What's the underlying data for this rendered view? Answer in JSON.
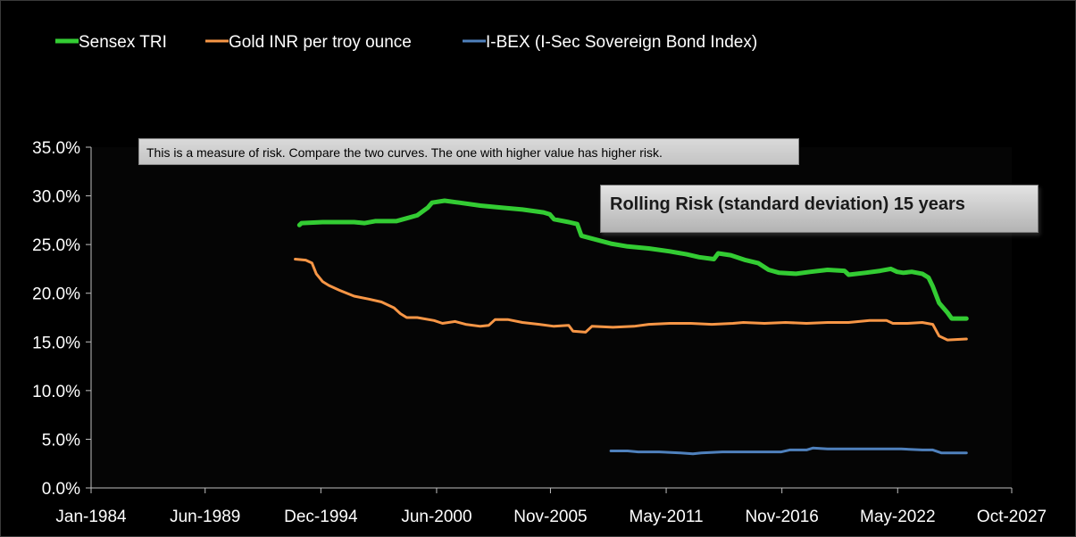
{
  "chart_data": {
    "type": "line",
    "title": "Rolling Risk (standard deviation) 15 years",
    "annotation": "This is a measure of risk.  Compare the two curves. The one with higher value has higher risk.",
    "xlabel": "",
    "ylabel": "",
    "x_ticks": [
      "Jan-1984",
      "Jun-1989",
      "Dec-1994",
      "Jun-2000",
      "Nov-2005",
      "May-2011",
      "Nov-2016",
      "May-2022",
      "Oct-2027"
    ],
    "x_tick_values": [
      1984.0,
      1989.42,
      1994.92,
      2000.42,
      2005.83,
      2011.33,
      2016.83,
      2022.33,
      2027.75
    ],
    "xlim": [
      1984.0,
      2027.75
    ],
    "y_ticks": [
      "0.0%",
      "5.0%",
      "10.0%",
      "15.0%",
      "20.0%",
      "25.0%",
      "30.0%",
      "35.0%"
    ],
    "ylim": [
      0,
      35
    ],
    "grid": false,
    "legend_position": "top-left",
    "series": [
      {
        "name": "Sensex TRI",
        "color": "#33cc33",
        "points": [
          [
            1993.9,
            27.0
          ],
          [
            1994.0,
            27.2
          ],
          [
            1995.0,
            27.3
          ],
          [
            1996.5,
            27.3
          ],
          [
            1997.0,
            27.2
          ],
          [
            1997.5,
            27.4
          ],
          [
            1998.5,
            27.4
          ],
          [
            1999.0,
            27.7
          ],
          [
            1999.5,
            28.0
          ],
          [
            2000.0,
            28.8
          ],
          [
            2000.2,
            29.3
          ],
          [
            2000.8,
            29.5
          ],
          [
            2001.5,
            29.3
          ],
          [
            2002.5,
            29.0
          ],
          [
            2003.5,
            28.8
          ],
          [
            2004.5,
            28.6
          ],
          [
            2005.5,
            28.3
          ],
          [
            2005.8,
            28.1
          ],
          [
            2006.0,
            27.6
          ],
          [
            2006.7,
            27.3
          ],
          [
            2007.1,
            27.1
          ],
          [
            2007.3,
            25.9
          ],
          [
            2008.0,
            25.5
          ],
          [
            2008.7,
            25.1
          ],
          [
            2009.5,
            24.8
          ],
          [
            2010.5,
            24.6
          ],
          [
            2011.5,
            24.3
          ],
          [
            2012.3,
            24.0
          ],
          [
            2012.9,
            23.7
          ],
          [
            2013.6,
            23.5
          ],
          [
            2013.8,
            24.1
          ],
          [
            2014.4,
            23.9
          ],
          [
            2015.1,
            23.4
          ],
          [
            2015.7,
            23.1
          ],
          [
            2016.2,
            22.4
          ],
          [
            2016.7,
            22.1
          ],
          [
            2017.5,
            22.0
          ],
          [
            2018.2,
            22.2
          ],
          [
            2019.0,
            22.4
          ],
          [
            2019.8,
            22.3
          ],
          [
            2020.0,
            21.9
          ],
          [
            2020.8,
            22.1
          ],
          [
            2021.5,
            22.3
          ],
          [
            2022.0,
            22.5
          ],
          [
            2022.3,
            22.2
          ],
          [
            2022.6,
            22.1
          ],
          [
            2023.0,
            22.2
          ],
          [
            2023.5,
            22.0
          ],
          [
            2023.8,
            21.6
          ],
          [
            2024.0,
            20.7
          ],
          [
            2024.3,
            19.0
          ],
          [
            2024.7,
            18.0
          ],
          [
            2024.9,
            17.4
          ],
          [
            2025.6,
            17.4
          ]
        ]
      },
      {
        "name": "Gold INR per troy ounce",
        "color": "#f79646",
        "points": [
          [
            1993.7,
            23.5
          ],
          [
            1994.2,
            23.4
          ],
          [
            1994.5,
            23.1
          ],
          [
            1994.7,
            22.0
          ],
          [
            1995.0,
            21.2
          ],
          [
            1995.3,
            20.8
          ],
          [
            1995.8,
            20.3
          ],
          [
            1996.5,
            19.7
          ],
          [
            1997.2,
            19.4
          ],
          [
            1997.8,
            19.1
          ],
          [
            1998.4,
            18.5
          ],
          [
            1998.7,
            17.9
          ],
          [
            1999.0,
            17.5
          ],
          [
            1999.5,
            17.5
          ],
          [
            2000.3,
            17.2
          ],
          [
            2000.7,
            16.9
          ],
          [
            2001.3,
            17.1
          ],
          [
            2001.8,
            16.8
          ],
          [
            2002.5,
            16.6
          ],
          [
            2002.9,
            16.7
          ],
          [
            2003.2,
            17.3
          ],
          [
            2003.8,
            17.3
          ],
          [
            2004.5,
            17.0
          ],
          [
            2005.3,
            16.8
          ],
          [
            2006.0,
            16.6
          ],
          [
            2006.7,
            16.7
          ],
          [
            2006.9,
            16.1
          ],
          [
            2007.5,
            16.0
          ],
          [
            2007.8,
            16.6
          ],
          [
            2008.8,
            16.5
          ],
          [
            2009.8,
            16.6
          ],
          [
            2010.5,
            16.8
          ],
          [
            2011.5,
            16.9
          ],
          [
            2012.5,
            16.9
          ],
          [
            2013.5,
            16.8
          ],
          [
            2014.5,
            16.9
          ],
          [
            2015.0,
            17.0
          ],
          [
            2016.0,
            16.9
          ],
          [
            2017.0,
            17.0
          ],
          [
            2018.0,
            16.9
          ],
          [
            2019.0,
            17.0
          ],
          [
            2020.0,
            17.0
          ],
          [
            2021.0,
            17.2
          ],
          [
            2021.8,
            17.2
          ],
          [
            2022.1,
            16.9
          ],
          [
            2022.8,
            16.9
          ],
          [
            2023.5,
            17.0
          ],
          [
            2024.0,
            16.8
          ],
          [
            2024.3,
            15.6
          ],
          [
            2024.7,
            15.2
          ],
          [
            2025.6,
            15.3
          ]
        ]
      },
      {
        "name": "I-BEX (I-Sec Sovereign Bond Index)",
        "color": "#4f81bd",
        "points": [
          [
            2008.7,
            3.8
          ],
          [
            2009.5,
            3.8
          ],
          [
            2010.0,
            3.7
          ],
          [
            2011.0,
            3.7
          ],
          [
            2012.0,
            3.6
          ],
          [
            2012.6,
            3.5
          ],
          [
            2013.0,
            3.6
          ],
          [
            2014.0,
            3.7
          ],
          [
            2015.5,
            3.7
          ],
          [
            2016.8,
            3.7
          ],
          [
            2017.2,
            3.9
          ],
          [
            2018.0,
            3.9
          ],
          [
            2018.3,
            4.1
          ],
          [
            2019.0,
            4.0
          ],
          [
            2020.0,
            4.0
          ],
          [
            2021.0,
            4.0
          ],
          [
            2022.5,
            4.0
          ],
          [
            2023.5,
            3.9
          ],
          [
            2024.0,
            3.9
          ],
          [
            2024.4,
            3.6
          ],
          [
            2025.6,
            3.6
          ]
        ]
      }
    ]
  }
}
